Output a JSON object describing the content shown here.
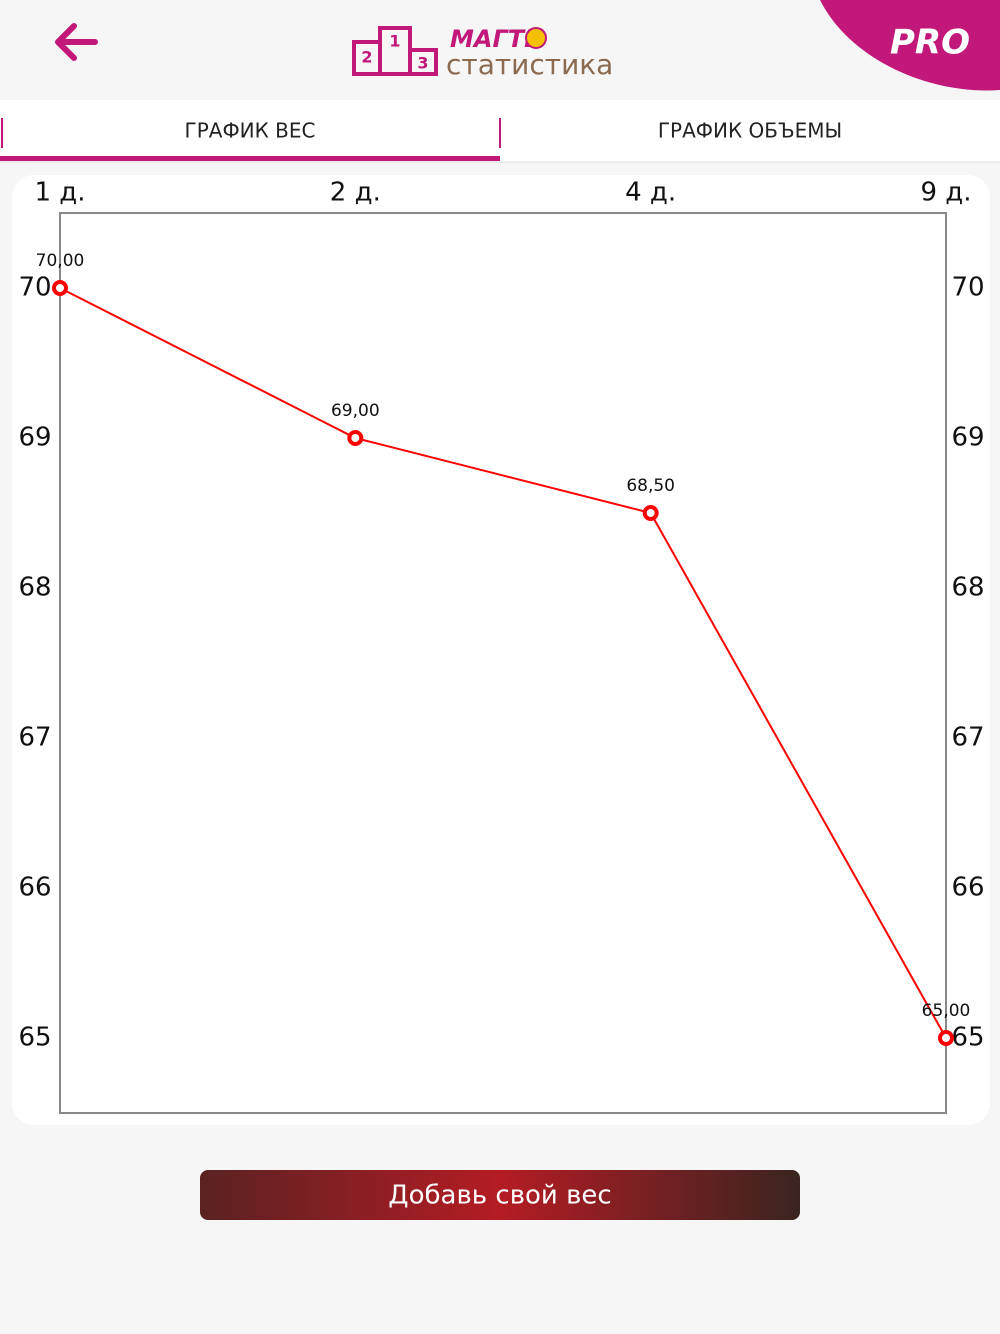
{
  "header": {
    "brand": "МАГТИ",
    "subtitle": "статистика",
    "badge": "PRO",
    "podium": [
      "1",
      "2",
      "3"
    ]
  },
  "tabs": [
    "ГРАФИК ВЕС",
    "ГРАФИК ОБЪЕМЫ"
  ],
  "chart_data": {
    "type": "line",
    "categories": [
      "1 д.",
      "2 д.",
      "4 д.",
      "9 д."
    ],
    "series": [
      {
        "color": "#ff0000",
        "values": [
          70,
          69,
          68.5,
          65
        ],
        "value_labels": [
          "70,00",
          "69,00",
          "68,50",
          "65,00"
        ]
      }
    ],
    "ylim": [
      64.5,
      70.5
    ],
    "yticks": [
      65,
      66,
      67,
      68,
      69,
      70
    ]
  },
  "button": "Добавь свой вес"
}
